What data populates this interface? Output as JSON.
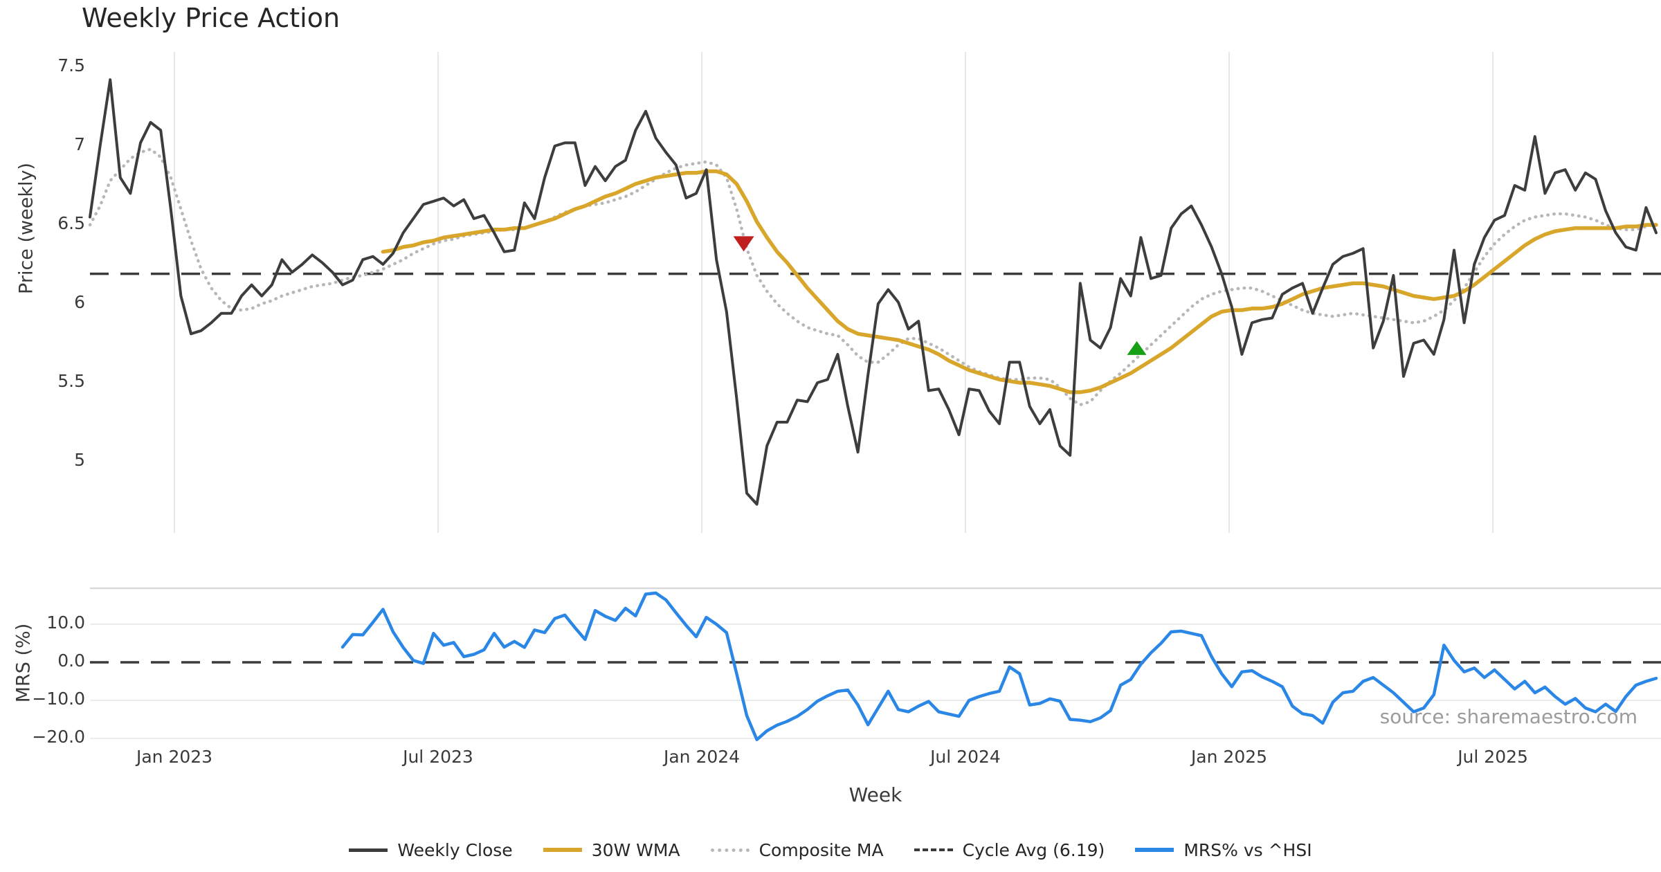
{
  "title": "Weekly Price Action",
  "watermark": "source: sharemaestro.com",
  "colors": {
    "weekly_close": "#3D3D3D",
    "wma": "#D8A62B",
    "composite": "#B7B7B7",
    "cycle_avg": "#3A3A3A",
    "mrs": "#2B87E6",
    "sell_marker": "#C01F1F",
    "buy_marker": "#15A015",
    "gridline": "#E7E7E7",
    "panel_border": "#D9D9D9",
    "text": "#3A3A3A",
    "watermark_color": "#9B9B9B"
  },
  "chart_data": {
    "type": "line",
    "title": "Weekly Price Action",
    "xlabel": "Week",
    "x_ticks": [
      {
        "label": "Jan 2023",
        "week": 8.36
      },
      {
        "label": "Jul 2023",
        "week": 34.45
      },
      {
        "label": "Jan 2024",
        "week": 60.55
      },
      {
        "label": "Jul 2024",
        "week": 86.64
      },
      {
        "label": "Jan 2025",
        "week": 112.74
      },
      {
        "label": "Jul 2025",
        "week": 138.84
      }
    ],
    "panels": [
      {
        "name": "price",
        "ylabel": "Price (weekly)",
        "ylim": [
          4.6,
          7.6
        ],
        "grid": "vertical-only",
        "yticks": [
          {
            "label": "7.5",
            "value": 7.5
          },
          {
            "label": "7",
            "value": 7.0
          },
          {
            "label": "6.5",
            "value": 6.5
          },
          {
            "label": "6",
            "value": 6.0
          },
          {
            "label": "5.5",
            "value": 5.5
          },
          {
            "label": "5",
            "value": 5.0
          }
        ],
        "reference_line": {
          "name": "Cycle Avg",
          "value": 6.19,
          "style": "dashed"
        }
      },
      {
        "name": "mrs",
        "ylabel": "MRS (%)",
        "ylim": [
          -22,
          20
        ],
        "grid": "horizontal-only",
        "yticks": [
          {
            "label": "10.0",
            "value": 10
          },
          {
            "label": "0.0",
            "value": 0
          },
          {
            "label": "−10.0",
            "value": -10
          },
          {
            "label": "−20.0",
            "value": -20
          }
        ],
        "reference_line": {
          "name": "zero",
          "value": 0,
          "style": "dashed"
        }
      }
    ],
    "series": [
      {
        "name": "Weekly Close",
        "panel": "price",
        "style": "solid",
        "color": "#3D3D3D",
        "width": 4,
        "start_week": 0,
        "values": [
          6.55,
          7.0,
          7.42,
          6.8,
          6.7,
          7.02,
          7.15,
          7.1,
          6.6,
          6.05,
          5.81,
          5.83,
          5.88,
          5.94,
          5.94,
          6.05,
          6.12,
          6.05,
          6.12,
          6.28,
          6.2,
          6.25,
          6.31,
          6.26,
          6.2,
          6.12,
          6.15,
          6.28,
          6.3,
          6.25,
          6.32,
          6.45,
          6.54,
          6.63,
          6.65,
          6.67,
          6.62,
          6.66,
          6.54,
          6.56,
          6.45,
          6.33,
          6.34,
          6.64,
          6.54,
          6.8,
          7.0,
          7.02,
          7.02,
          6.75,
          6.87,
          6.78,
          6.87,
          6.91,
          7.1,
          7.22,
          7.05,
          6.96,
          6.88,
          6.67,
          6.7,
          6.85,
          6.28,
          5.95,
          5.4,
          4.8,
          4.73,
          5.1,
          5.25,
          5.25,
          5.39,
          5.38,
          5.5,
          5.52,
          5.68,
          5.35,
          5.06,
          5.55,
          6.0,
          6.09,
          6.01,
          5.84,
          5.89,
          5.45,
          5.46,
          5.33,
          5.17,
          5.46,
          5.45,
          5.32,
          5.24,
          5.63,
          5.63,
          5.35,
          5.24,
          5.33,
          5.1,
          5.04,
          6.13,
          5.77,
          5.72,
          5.85,
          6.16,
          6.05,
          6.42,
          6.16,
          6.18,
          6.48,
          6.57,
          6.62,
          6.5,
          6.36,
          6.19,
          5.98,
          5.68,
          5.88,
          5.9,
          5.91,
          6.06,
          6.1,
          6.13,
          5.94,
          6.1,
          6.25,
          6.3,
          6.32,
          6.35,
          5.72,
          5.89,
          6.18,
          5.54,
          5.75,
          5.77,
          5.68,
          5.9,
          6.34,
          5.88,
          6.25,
          6.42,
          6.53,
          6.56,
          6.75,
          6.72,
          7.06,
          6.7,
          6.83,
          6.85,
          6.72,
          6.83,
          6.79,
          6.59,
          6.45,
          6.36,
          6.34,
          6.61,
          6.45
        ]
      },
      {
        "name": "30W WMA",
        "panel": "price",
        "style": "solid",
        "color": "#D8A62B",
        "width": 5.5,
        "start_week": 29,
        "values": [
          6.33,
          6.34,
          6.36,
          6.37,
          6.39,
          6.4,
          6.42,
          6.43,
          6.44,
          6.45,
          6.46,
          6.47,
          6.47,
          6.48,
          6.48,
          6.5,
          6.52,
          6.54,
          6.57,
          6.6,
          6.62,
          6.65,
          6.68,
          6.7,
          6.73,
          6.76,
          6.78,
          6.8,
          6.81,
          6.82,
          6.83,
          6.83,
          6.84,
          6.84,
          6.82,
          6.76,
          6.65,
          6.52,
          6.42,
          6.33,
          6.26,
          6.18,
          6.1,
          6.03,
          5.96,
          5.89,
          5.84,
          5.81,
          5.8,
          5.79,
          5.78,
          5.77,
          5.75,
          5.73,
          5.71,
          5.68,
          5.64,
          5.61,
          5.58,
          5.56,
          5.54,
          5.52,
          5.51,
          5.5,
          5.5,
          5.49,
          5.48,
          5.46,
          5.44,
          5.44,
          5.45,
          5.47,
          5.5,
          5.53,
          5.56,
          5.6,
          5.64,
          5.68,
          5.72,
          5.77,
          5.82,
          5.87,
          5.92,
          5.95,
          5.96,
          5.96,
          5.97,
          5.97,
          5.98,
          6.0,
          6.03,
          6.06,
          6.08,
          6.1,
          6.11,
          6.12,
          6.13,
          6.13,
          6.12,
          6.11,
          6.09,
          6.07,
          6.05,
          6.04,
          6.03,
          6.04,
          6.05,
          6.08,
          6.12,
          6.17,
          6.22,
          6.27,
          6.32,
          6.37,
          6.41,
          6.44,
          6.46,
          6.47,
          6.48,
          6.48,
          6.48,
          6.48,
          6.48,
          6.49,
          6.49,
          6.5,
          6.5
        ]
      },
      {
        "name": "Composite MA",
        "panel": "price",
        "style": "dotted",
        "color": "#B7B7B7",
        "width": 4.5,
        "start_week": 0,
        "values": [
          6.5,
          6.62,
          6.78,
          6.85,
          6.92,
          6.96,
          6.98,
          6.93,
          6.8,
          6.6,
          6.4,
          6.22,
          6.1,
          6.02,
          5.97,
          5.96,
          5.97,
          6.0,
          6.02,
          6.05,
          6.07,
          6.09,
          6.11,
          6.12,
          6.13,
          6.15,
          6.17,
          6.18,
          6.2,
          6.22,
          6.25,
          6.28,
          6.32,
          6.35,
          6.38,
          6.4,
          6.41,
          6.43,
          6.44,
          6.45,
          6.46,
          6.47,
          6.47,
          6.48,
          6.5,
          6.52,
          6.55,
          6.58,
          6.6,
          6.62,
          6.63,
          6.64,
          6.66,
          6.68,
          6.71,
          6.75,
          6.79,
          6.83,
          6.86,
          6.88,
          6.89,
          6.9,
          6.88,
          6.8,
          6.6,
          6.35,
          6.18,
          6.08,
          6.0,
          5.94,
          5.89,
          5.85,
          5.83,
          5.81,
          5.8,
          5.74,
          5.67,
          5.63,
          5.63,
          5.68,
          5.74,
          5.78,
          5.78,
          5.75,
          5.72,
          5.68,
          5.64,
          5.6,
          5.57,
          5.55,
          5.53,
          5.52,
          5.52,
          5.53,
          5.53,
          5.52,
          5.47,
          5.4,
          5.36,
          5.38,
          5.45,
          5.51,
          5.56,
          5.62,
          5.68,
          5.74,
          5.8,
          5.86,
          5.92,
          5.98,
          6.03,
          6.06,
          6.08,
          6.09,
          6.1,
          6.1,
          6.08,
          6.05,
          6.02,
          5.99,
          5.96,
          5.94,
          5.93,
          5.92,
          5.93,
          5.94,
          5.93,
          5.92,
          5.91,
          5.9,
          5.89,
          5.88,
          5.89,
          5.92,
          5.96,
          6.02,
          6.1,
          6.2,
          6.3,
          6.38,
          6.44,
          6.49,
          6.53,
          6.55,
          6.56,
          6.57,
          6.57,
          6.56,
          6.55,
          6.53,
          6.5,
          6.48,
          6.47,
          6.47,
          6.49,
          6.51
        ]
      },
      {
        "name": "MRS% vs ^HSI",
        "panel": "mrs",
        "style": "solid",
        "color": "#2B87E6",
        "width": 4.5,
        "start_week": 25,
        "values": [
          4.0,
          7.3,
          7.2,
          10.5,
          13.9,
          8.0,
          3.9,
          0.5,
          -0.3,
          7.6,
          4.5,
          5.2,
          1.5,
          2.1,
          3.3,
          7.6,
          4.0,
          5.5,
          3.9,
          8.5,
          7.8,
          11.5,
          12.4,
          9.1,
          6.0,
          13.6,
          12.1,
          11.0,
          14.2,
          12.2,
          17.9,
          18.2,
          16.4,
          13.0,
          9.7,
          6.7,
          11.8,
          10.0,
          7.8,
          -3.0,
          -14.0,
          -20.3,
          -18.0,
          -16.5,
          -15.5,
          -14.2,
          -12.4,
          -10.2,
          -8.8,
          -7.6,
          -7.3,
          -11.2,
          -16.4,
          -12.0,
          -7.6,
          -12.4,
          -13.0,
          -11.5,
          -10.3,
          -13.0,
          -13.6,
          -14.2,
          -10.0,
          -9.0,
          -8.2,
          -7.6,
          -1.2,
          -3.0,
          -11.2,
          -10.8,
          -9.6,
          -10.2,
          -15.0,
          -15.2,
          -15.6,
          -14.6,
          -12.7,
          -6.0,
          -4.5,
          -0.5,
          2.5,
          5.0,
          8.0,
          8.2,
          7.6,
          7.0,
          1.5,
          -3.0,
          -6.4,
          -2.5,
          -2.2,
          -3.8,
          -5.0,
          -6.4,
          -11.5,
          -13.5,
          -14.0,
          -16.0,
          -10.5,
          -8.0,
          -7.6,
          -5.0,
          -4.0,
          -6.0,
          -8.0,
          -10.5,
          -13.0,
          -12.0,
          -8.5,
          4.5,
          0.5,
          -2.5,
          -1.5,
          -4.0,
          -2.0,
          -4.5,
          -7.0,
          -5.0,
          -8.0,
          -6.5,
          -9.0,
          -11.0,
          -9.5,
          -12.0,
          -13.0,
          -11.0,
          -12.9,
          -9.0,
          -6.0,
          -5.0,
          -4.2
        ]
      }
    ],
    "markers": [
      {
        "name": "sell-signal",
        "shape": "triangle-down",
        "color": "#C01F1F",
        "week": 64.7,
        "price": 6.38
      },
      {
        "name": "buy-signal",
        "shape": "triangle-up",
        "color": "#15A015",
        "week": 103.6,
        "price": 5.72
      }
    ]
  },
  "legend": [
    {
      "label": "Weekly Close",
      "swatch": "sw-close"
    },
    {
      "label": "30W WMA",
      "swatch": "sw-wma"
    },
    {
      "label": "Composite MA",
      "swatch": "sw-comp"
    },
    {
      "label": "Cycle Avg (6.19)",
      "swatch": "sw-cycle"
    },
    {
      "label": "MRS% vs ^HSI",
      "swatch": "sw-mrs"
    }
  ]
}
